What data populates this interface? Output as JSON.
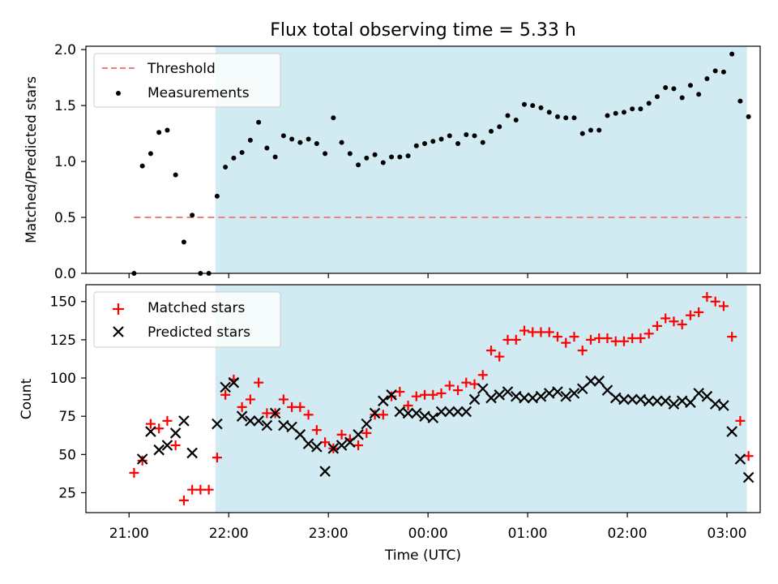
{
  "title": "Flux total observing time = 5.33 h",
  "colors": {
    "observing_span": "#add8e6",
    "threshold": "#f08080",
    "measurements": "#000000",
    "matched": "#ff0000",
    "predicted": "#000000"
  },
  "chart_data": [
    {
      "type": "scatter",
      "ylabel": "Matched/Predicted stars",
      "ylim": [
        0,
        2.03
      ],
      "yticks": [
        0,
        0.5,
        1.0,
        1.5,
        2.0
      ],
      "ytick_labels": [
        "0.0",
        "0.5",
        "1.0",
        "1.5",
        "2.0"
      ],
      "legend": {
        "location": "upper-left",
        "entries": [
          "Threshold",
          "Measurements"
        ]
      },
      "shaded_span": {
        "x_start": "21:52",
        "x_end": "03:12"
      },
      "threshold": {
        "name": "Threshold",
        "value": 0.5,
        "x_start": "21:03",
        "x_end": "03:12"
      },
      "series": [
        {
          "name": "Measurements",
          "x": [
            "21:03",
            "21:08",
            "21:13",
            "21:18",
            "21:23",
            "21:28",
            "21:33",
            "21:38",
            "21:43",
            "21:48",
            "21:53",
            "21:58",
            "22:03",
            "22:08",
            "22:13",
            "22:18",
            "22:23",
            "22:28",
            "22:33",
            "22:38",
            "22:43",
            "22:48",
            "22:53",
            "22:58",
            "23:03",
            "23:08",
            "23:13",
            "23:18",
            "23:23",
            "23:28",
            "23:33",
            "23:38",
            "23:43",
            "23:48",
            "23:53",
            "23:58",
            "00:03",
            "00:08",
            "00:13",
            "00:18",
            "00:23",
            "00:28",
            "00:33",
            "00:38",
            "00:43",
            "00:48",
            "00:53",
            "00:58",
            "01:03",
            "01:08",
            "01:13",
            "01:18",
            "01:23",
            "01:28",
            "01:33",
            "01:38",
            "01:43",
            "01:48",
            "01:53",
            "01:58",
            "02:03",
            "02:08",
            "02:13",
            "02:18",
            "02:23",
            "02:28",
            "02:33",
            "02:38",
            "02:43",
            "02:48",
            "02:53",
            "02:58",
            "03:03",
            "03:08",
            "03:13"
          ],
          "values": [
            0.0,
            0.96,
            1.07,
            1.26,
            1.28,
            0.88,
            0.28,
            0.52,
            0.0,
            0.0,
            0.69,
            0.95,
            1.03,
            1.08,
            1.19,
            1.35,
            1.12,
            1.04,
            1.23,
            1.2,
            1.17,
            1.2,
            1.16,
            1.07,
            1.39,
            1.17,
            1.07,
            0.97,
            1.03,
            1.06,
            0.99,
            1.04,
            1.04,
            1.05,
            1.14,
            1.16,
            1.18,
            1.2,
            1.23,
            1.16,
            1.24,
            1.23,
            1.17,
            1.27,
            1.31,
            1.41,
            1.37,
            1.51,
            1.5,
            1.48,
            1.44,
            1.4,
            1.39,
            1.39,
            1.25,
            1.28,
            1.28,
            1.41,
            1.43,
            1.44,
            1.47,
            1.47,
            1.52,
            1.58,
            1.66,
            1.65,
            1.57,
            1.68,
            1.6,
            1.74,
            1.81,
            1.8,
            1.96,
            1.54,
            1.4
          ]
        }
      ]
    },
    {
      "type": "scatter",
      "ylabel": "Count",
      "xlabel": "Time (UTC)",
      "ylim": [
        12,
        161
      ],
      "yticks": [
        25,
        50,
        75,
        100,
        125,
        150
      ],
      "ytick_labels": [
        "25",
        "50",
        "75",
        "100",
        "125",
        "150"
      ],
      "xticks": [
        "21:00",
        "22:00",
        "23:00",
        "00:00",
        "01:00",
        "02:00",
        "03:00"
      ],
      "legend": {
        "location": "upper-left",
        "entries": [
          "Matched stars",
          "Predicted stars"
        ]
      },
      "shaded_span": {
        "x_start": "21:52",
        "x_end": "03:12"
      },
      "series": [
        {
          "name": "Matched stars",
          "x": [
            "21:03",
            "21:08",
            "21:13",
            "21:18",
            "21:23",
            "21:28",
            "21:33",
            "21:38",
            "21:43",
            "21:48",
            "21:53",
            "21:58",
            "22:03",
            "22:08",
            "22:13",
            "22:18",
            "22:23",
            "22:28",
            "22:33",
            "22:38",
            "22:43",
            "22:48",
            "22:53",
            "22:58",
            "23:03",
            "23:08",
            "23:13",
            "23:18",
            "23:23",
            "23:28",
            "23:33",
            "23:38",
            "23:43",
            "23:48",
            "23:53",
            "23:58",
            "00:03",
            "00:08",
            "00:13",
            "00:18",
            "00:23",
            "00:28",
            "00:33",
            "00:38",
            "00:43",
            "00:48",
            "00:53",
            "00:58",
            "01:03",
            "01:08",
            "01:13",
            "01:18",
            "01:23",
            "01:28",
            "01:33",
            "01:38",
            "01:43",
            "01:48",
            "01:53",
            "01:58",
            "02:03",
            "02:08",
            "02:13",
            "02:18",
            "02:23",
            "02:28",
            "02:33",
            "02:38",
            "02:43",
            "02:48",
            "02:53",
            "02:58",
            "03:03",
            "03:08",
            "03:13"
          ],
          "values": [
            38,
            46,
            70,
            67,
            72,
            56,
            20,
            27,
            27,
            27,
            48,
            89,
            99,
            81,
            86,
            97,
            77,
            77,
            86,
            81,
            81,
            76,
            66,
            58,
            54,
            63,
            60,
            56,
            64,
            76,
            76,
            88,
            91,
            82,
            88,
            89,
            89,
            90,
            95,
            92,
            97,
            96,
            102,
            118,
            114,
            125,
            125,
            131,
            130,
            130,
            130,
            127,
            123,
            127,
            118,
            125,
            126,
            126,
            124,
            124,
            126,
            126,
            129,
            134,
            139,
            137,
            135,
            141,
            143,
            153,
            150,
            147,
            127,
            72,
            49
          ]
        },
        {
          "name": "Predicted stars",
          "x": [
            "21:03",
            "21:08",
            "21:13",
            "21:18",
            "21:23",
            "21:28",
            "21:33",
            "21:38",
            "21:43",
            "21:48",
            "21:53",
            "21:58",
            "22:03",
            "22:08",
            "22:13",
            "22:18",
            "22:23",
            "22:28",
            "22:33",
            "22:38",
            "22:43",
            "22:48",
            "22:53",
            "22:58",
            "23:03",
            "23:08",
            "23:13",
            "23:18",
            "23:23",
            "23:28",
            "23:33",
            "23:38",
            "23:43",
            "23:48",
            "23:53",
            "23:58",
            "00:03",
            "00:08",
            "00:13",
            "00:18",
            "00:23",
            "00:28",
            "00:33",
            "00:38",
            "00:43",
            "00:48",
            "00:53",
            "00:58",
            "01:03",
            "01:08",
            "01:13",
            "01:18",
            "01:23",
            "01:28",
            "01:33",
            "01:38",
            "01:43",
            "01:48",
            "01:53",
            "01:58",
            "02:03",
            "02:08",
            "02:13",
            "02:18",
            "02:23",
            "02:28",
            "02:33",
            "02:38",
            "02:43",
            "02:48",
            "02:53",
            "02:58",
            "03:03",
            "03:08",
            "03:13"
          ],
          "values": [
            null,
            47,
            65,
            53,
            56,
            64,
            72,
            51,
            null,
            null,
            70,
            94,
            97,
            75,
            72,
            72,
            69,
            77,
            69,
            68,
            63,
            57,
            55,
            39,
            54,
            56,
            58,
            63,
            70,
            77,
            85,
            89,
            78,
            77,
            77,
            75,
            74,
            78,
            78,
            78,
            78,
            86,
            93,
            87,
            89,
            91,
            88,
            87,
            87,
            88,
            90,
            91,
            88,
            90,
            93,
            98,
            98,
            92,
            87,
            86,
            86,
            86,
            85,
            85,
            85,
            83,
            85,
            84,
            90,
            88,
            83,
            82,
            65,
            47,
            35
          ]
        }
      ]
    }
  ]
}
